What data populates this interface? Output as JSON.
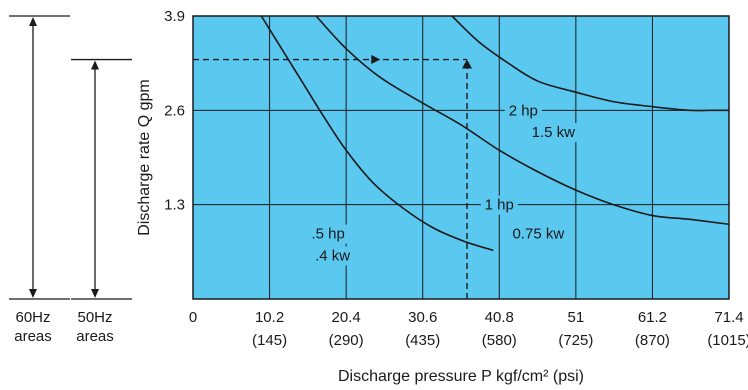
{
  "chart_data": {
    "type": "line",
    "xlabel": "Discharge pressure P kgf/cm² (psi)",
    "ylabel": "Discharge rate Q  gpm",
    "xlim": [
      0,
      71.4
    ],
    "ylim": [
      0,
      3.9
    ],
    "x_ticks": [
      {
        "value": 0,
        "label": "0",
        "sub": ""
      },
      {
        "value": 10.2,
        "label": "10.2",
        "sub": "(145)"
      },
      {
        "value": 20.4,
        "label": "20.4",
        "sub": "(290)"
      },
      {
        "value": 30.6,
        "label": "30.6",
        "sub": "(435)"
      },
      {
        "value": 40.8,
        "label": "40.8",
        "sub": "(580)"
      },
      {
        "value": 51,
        "label": "51",
        "sub": "(725)"
      },
      {
        "value": 61.2,
        "label": "61.2",
        "sub": "(870)"
      },
      {
        "value": 71.4,
        "label": "71.4",
        "sub": "(1015)"
      }
    ],
    "y_ticks": [
      {
        "value": 1.3,
        "label": "1.3"
      },
      {
        "value": 2.6,
        "label": "2.6"
      },
      {
        "value": 3.9,
        "label": "3.9"
      }
    ],
    "grid": true,
    "background_color": "#5bc8f0",
    "line_color": "#1a1a1a",
    "series": [
      {
        "name": ".5 hp / .4 kw",
        "x": [
          9.1,
          11.5,
          14.5,
          17.5,
          20.4,
          24,
          28,
          32,
          36,
          40
        ],
        "y": [
          3.9,
          3.5,
          3.0,
          2.5,
          2.05,
          1.6,
          1.25,
          0.98,
          0.8,
          0.67
        ]
      },
      {
        "name": "1 hp / 0.75 kw",
        "x": [
          16.4,
          20.4,
          25,
          30.6,
          35.7,
          40.8,
          46,
          51,
          56,
          61.2,
          66,
          71.4
        ],
        "y": [
          3.9,
          3.45,
          3.05,
          2.7,
          2.4,
          2.05,
          1.75,
          1.5,
          1.3,
          1.15,
          1.1,
          1.03
        ]
      },
      {
        "name": "2 hp / 1.5 kw",
        "x": [
          34.5,
          38,
          42,
          46,
          51,
          56,
          61.2,
          66,
          69,
          71.4
        ],
        "y": [
          3.9,
          3.55,
          3.25,
          3.0,
          2.85,
          2.72,
          2.65,
          2.6,
          2.6,
          2.6
        ]
      }
    ],
    "annotations": [
      {
        "text": "2 hp",
        "x": 44,
        "y": 2.6
      },
      {
        "text": "1.5 kw",
        "x": 48,
        "y": 2.3
      },
      {
        "text": "1 hp",
        "x": 40.8,
        "y": 1.3
      },
      {
        "text": "0.75 kw",
        "x": 46,
        "y": 0.9
      },
      {
        "text": ".5 hp",
        "x": 18,
        "y": 0.9
      },
      {
        "text": ".4 kw",
        "x": 18.6,
        "y": 0.6
      }
    ],
    "reading_example": {
      "x": 36.5,
      "y": 3.3
    },
    "frequency_bars": [
      {
        "label_line1": "60Hz",
        "label_line2": "areas",
        "top_value": 3.9
      },
      {
        "label_line1": "50Hz",
        "label_line2": "areas",
        "top_value": 3.3
      }
    ]
  }
}
